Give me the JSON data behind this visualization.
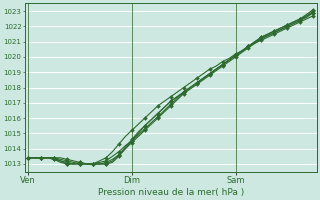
{
  "xlabel": "Pression niveau de la mer( hPa )",
  "bg_color": "#cce8e0",
  "line_color": "#2d6a2d",
  "ylim": [
    1012.5,
    1023.5
  ],
  "yticks": [
    1013,
    1014,
    1015,
    1016,
    1017,
    1018,
    1019,
    1020,
    1021,
    1022,
    1023
  ],
  "xtick_labels": [
    "Ven",
    "Dim",
    "Sam"
  ],
  "xtick_positions": [
    0,
    16,
    32
  ],
  "total_points": 45,
  "lines": [
    [
      1013.4,
      1013.4,
      1013.4,
      1013.4,
      1013.4,
      1013.3,
      1013.2,
      1013.1,
      1013.0,
      1013.0,
      1013.0,
      1013.1,
      1013.2,
      1013.5,
      1013.8,
      1014.2,
      1014.5,
      1014.9,
      1015.3,
      1015.7,
      1016.1,
      1016.5,
      1016.9,
      1017.3,
      1017.7,
      1018.0,
      1018.3,
      1018.6,
      1018.9,
      1019.2,
      1019.5,
      1019.8,
      1020.1,
      1020.4,
      1020.7,
      1021.0,
      1021.3,
      1021.5,
      1021.7,
      1021.9,
      1022.1,
      1022.3,
      1022.5,
      1022.7,
      1022.9
    ],
    [
      1013.4,
      1013.4,
      1013.4,
      1013.4,
      1013.4,
      1013.2,
      1013.1,
      1013.0,
      1013.0,
      1013.0,
      1013.0,
      1013.0,
      1013.1,
      1013.3,
      1013.6,
      1014.0,
      1014.4,
      1014.8,
      1015.2,
      1015.6,
      1016.0,
      1016.4,
      1016.8,
      1017.2,
      1017.6,
      1017.9,
      1018.2,
      1018.5,
      1018.8,
      1019.1,
      1019.4,
      1019.7,
      1020.0,
      1020.3,
      1020.6,
      1020.9,
      1021.2,
      1021.4,
      1021.6,
      1021.8,
      1022.0,
      1022.2,
      1022.4,
      1022.6,
      1022.9
    ],
    [
      1013.4,
      1013.4,
      1013.4,
      1013.4,
      1013.4,
      1013.4,
      1013.3,
      1013.2,
      1013.1,
      1013.0,
      1013.0,
      1013.2,
      1013.4,
      1013.8,
      1014.3,
      1014.8,
      1015.2,
      1015.6,
      1016.0,
      1016.4,
      1016.8,
      1017.1,
      1017.4,
      1017.7,
      1018.0,
      1018.3,
      1018.6,
      1018.9,
      1019.2,
      1019.4,
      1019.7,
      1019.9,
      1020.2,
      1020.4,
      1020.7,
      1020.9,
      1021.1,
      1021.3,
      1021.5,
      1021.7,
      1021.9,
      1022.1,
      1022.3,
      1022.5,
      1022.7
    ],
    [
      1013.4,
      1013.4,
      1013.4,
      1013.4,
      1013.3,
      1013.2,
      1013.0,
      1013.0,
      1013.1,
      1013.0,
      1013.0,
      1013.0,
      1013.0,
      1013.2,
      1013.6,
      1014.1,
      1014.6,
      1015.1,
      1015.5,
      1015.9,
      1016.3,
      1016.7,
      1017.1,
      1017.4,
      1017.7,
      1018.0,
      1018.3,
      1018.6,
      1018.9,
      1019.2,
      1019.5,
      1019.8,
      1020.1,
      1020.4,
      1020.7,
      1021.0,
      1021.2,
      1021.4,
      1021.6,
      1021.8,
      1022.0,
      1022.2,
      1022.4,
      1022.7,
      1023.0
    ],
    [
      1013.4,
      1013.4,
      1013.4,
      1013.4,
      1013.3,
      1013.1,
      1013.0,
      1013.0,
      1013.0,
      1013.0,
      1013.0,
      1013.0,
      1013.0,
      1013.1,
      1013.5,
      1014.0,
      1014.5,
      1015.0,
      1015.5,
      1015.9,
      1016.3,
      1016.7,
      1017.1,
      1017.4,
      1017.7,
      1018.0,
      1018.3,
      1018.6,
      1018.9,
      1019.2,
      1019.5,
      1019.8,
      1020.1,
      1020.4,
      1020.7,
      1021.0,
      1021.3,
      1021.5,
      1021.7,
      1021.9,
      1022.1,
      1022.3,
      1022.5,
      1022.8,
      1023.1
    ]
  ],
  "marker_interval": 2,
  "marker": "D",
  "marker_size": 2.0,
  "linewidth": 0.8,
  "figsize": [
    3.2,
    2.0
  ],
  "dpi": 100
}
